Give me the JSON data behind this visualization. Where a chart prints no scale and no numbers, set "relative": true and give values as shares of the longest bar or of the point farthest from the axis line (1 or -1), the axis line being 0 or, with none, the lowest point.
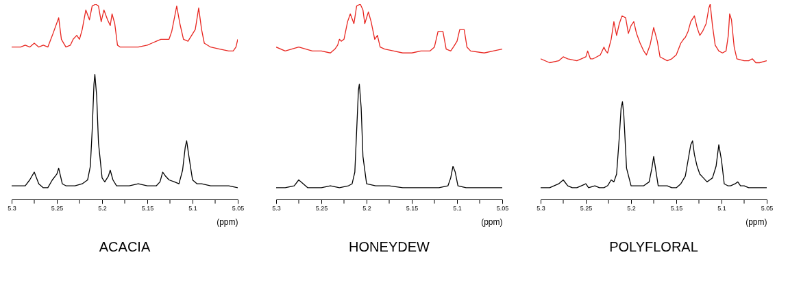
{
  "chart_data": [
    {
      "type": "line",
      "title": "ACACIA",
      "xlabel": "(ppm)",
      "relative": true,
      "tick_labels": "x",
      "xlim": [
        5.3,
        5.05
      ],
      "xticks": [
        5.3,
        {
          "value": 5.275,
          "label": null
        },
        5.25,
        {
          "value": 5.225,
          "label": null
        },
        5.2,
        {
          "value": 5.175,
          "label": null
        },
        5.15,
        {
          "value": 5.125,
          "label": null
        },
        5.1,
        {
          "value": 5.075,
          "label": null
        },
        5.05
      ],
      "series": [
        {
          "color": "#e8251f",
          "x": [
            5.3,
            5.29,
            5.285,
            5.28,
            5.275,
            5.27,
            5.265,
            5.26,
            5.255,
            5.248,
            5.245,
            5.24,
            5.235,
            5.232,
            5.228,
            5.225,
            5.222,
            5.218,
            5.214,
            5.211,
            5.207,
            5.204,
            5.201,
            5.198,
            5.194,
            5.191,
            5.189,
            5.186,
            5.183,
            5.18,
            5.17,
            5.16,
            5.15,
            5.145,
            5.14,
            5.135,
            5.13,
            5.126,
            5.123,
            5.1175,
            5.114,
            5.11,
            5.105,
            5.097,
            5.0932,
            5.09,
            5.087,
            5.08,
            5.07,
            5.06,
            5.055,
            5.052,
            5.05
          ],
          "values": [
            0.78,
            0.78,
            0.79,
            0.78,
            0.8,
            0.78,
            0.79,
            0.78,
            0.84,
            0.93,
            0.82,
            0.78,
            0.79,
            0.82,
            0.84,
            0.82,
            0.87,
            0.97,
            0.92,
            0.99,
            1.0,
            0.99,
            0.91,
            0.97,
            0.92,
            0.89,
            0.95,
            0.9,
            0.79,
            0.78,
            0.78,
            0.78,
            0.79,
            0.8,
            0.81,
            0.82,
            0.82,
            0.82,
            0.86,
            0.99,
            0.9,
            0.82,
            0.81,
            0.87,
            0.98,
            0.87,
            0.8,
            0.78,
            0.77,
            0.76,
            0.76,
            0.78,
            0.82
          ]
        },
        {
          "color": "#000000",
          "x": [
            5.3,
            5.29,
            5.285,
            5.28,
            5.275,
            5.27,
            5.265,
            5.26,
            5.255,
            5.25,
            5.248,
            5.244,
            5.24,
            5.23,
            5.222,
            5.216,
            5.213,
            5.211,
            5.209,
            5.208,
            5.206,
            5.204,
            5.2,
            5.197,
            5.193,
            5.191,
            5.188,
            5.184,
            5.17,
            5.16,
            5.15,
            5.14,
            5.136,
            5.133,
            5.13,
            5.126,
            5.12,
            5.115,
            5.111,
            5.108,
            5.1065,
            5.104,
            5.1,
            5.095,
            5.09,
            5.08,
            5.07,
            5.06,
            5.05
          ],
          "values": [
            0.07,
            0.07,
            0.07,
            0.1,
            0.14,
            0.08,
            0.06,
            0.06,
            0.1,
            0.13,
            0.16,
            0.08,
            0.07,
            0.07,
            0.08,
            0.1,
            0.17,
            0.35,
            0.59,
            0.64,
            0.53,
            0.29,
            0.11,
            0.09,
            0.12,
            0.15,
            0.1,
            0.07,
            0.07,
            0.08,
            0.07,
            0.07,
            0.09,
            0.14,
            0.12,
            0.1,
            0.09,
            0.08,
            0.15,
            0.27,
            0.3,
            0.22,
            0.1,
            0.08,
            0.08,
            0.07,
            0.07,
            0.07,
            0.06
          ]
        }
      ]
    },
    {
      "type": "line",
      "title": "HONEYDEW",
      "xlabel": "(ppm)",
      "relative": true,
      "tick_labels": "x",
      "xlim": [
        5.3,
        5.05
      ],
      "xticks": [
        5.3,
        {
          "value": 5.275,
          "label": null
        },
        5.25,
        {
          "value": 5.225,
          "label": null
        },
        5.2,
        {
          "value": 5.175,
          "label": null
        },
        5.15,
        {
          "value": 5.125,
          "label": null
        },
        5.1,
        {
          "value": 5.075,
          "label": null
        },
        5.05
      ],
      "series": [
        {
          "color": "#e8251f",
          "x": [
            5.3,
            5.29,
            5.275,
            5.26,
            5.25,
            5.24,
            5.235,
            5.232,
            5.23,
            5.228,
            5.225,
            5.221,
            5.218,
            5.214,
            5.211,
            5.207,
            5.204,
            5.202,
            5.198,
            5.195,
            5.191,
            5.188,
            5.185,
            5.18,
            5.17,
            5.16,
            5.15,
            5.14,
            5.13,
            5.125,
            5.121,
            5.1156,
            5.112,
            5.107,
            5.104,
            5.1,
            5.097,
            5.0921,
            5.089,
            5.085,
            5.07,
            5.06,
            5.05
          ],
          "values": [
            0.78,
            0.76,
            0.78,
            0.76,
            0.76,
            0.75,
            0.77,
            0.79,
            0.82,
            0.81,
            0.82,
            0.91,
            0.95,
            0.9,
            0.99,
            1.0,
            0.97,
            0.9,
            0.96,
            0.91,
            0.82,
            0.84,
            0.78,
            0.77,
            0.76,
            0.75,
            0.75,
            0.76,
            0.76,
            0.78,
            0.86,
            0.86,
            0.77,
            0.76,
            0.78,
            0.81,
            0.87,
            0.87,
            0.78,
            0.76,
            0.75,
            0.76,
            0.77
          ]
        },
        {
          "color": "#000000",
          "x": [
            5.3,
            5.29,
            5.28,
            5.275,
            5.27,
            5.265,
            5.25,
            5.24,
            5.23,
            5.22,
            5.216,
            5.213,
            5.211,
            5.209,
            5.208,
            5.206,
            5.204,
            5.2,
            5.19,
            5.18,
            5.175,
            5.16,
            5.14,
            5.12,
            5.11,
            5.107,
            5.1045,
            5.102,
            5.099,
            5.09,
            5.07,
            5.05
          ],
          "values": [
            0.06,
            0.06,
            0.07,
            0.1,
            0.08,
            0.06,
            0.06,
            0.07,
            0.06,
            0.07,
            0.08,
            0.14,
            0.35,
            0.56,
            0.59,
            0.47,
            0.22,
            0.08,
            0.07,
            0.07,
            0.07,
            0.06,
            0.06,
            0.06,
            0.07,
            0.11,
            0.17,
            0.14,
            0.07,
            0.06,
            0.06,
            0.06
          ]
        }
      ]
    },
    {
      "type": "line",
      "title": "POLYFLORAL",
      "xlabel": "(ppm)",
      "relative": true,
      "tick_labels": "x",
      "xlim": [
        5.3,
        5.05
      ],
      "xticks": [
        5.3,
        {
          "value": 5.275,
          "label": null
        },
        5.25,
        {
          "value": 5.225,
          "label": null
        },
        5.2,
        {
          "value": 5.175,
          "label": null
        },
        5.15,
        {
          "value": 5.125,
          "label": null
        },
        5.1,
        {
          "value": 5.075,
          "label": null
        },
        5.05
      ],
      "series": [
        {
          "color": "#e8251f",
          "x": [
            5.3,
            5.29,
            5.28,
            5.275,
            5.27,
            5.26,
            5.255,
            5.25,
            5.248,
            5.245,
            5.242,
            5.238,
            5.234,
            5.232,
            5.23,
            5.228,
            5.226,
            5.222,
            5.219,
            5.216,
            5.213,
            5.21,
            5.206,
            5.203,
            5.2,
            5.197,
            5.194,
            5.19,
            5.188,
            5.186,
            5.183,
            5.179,
            5.175,
            5.171,
            5.168,
            5.16,
            5.155,
            5.15,
            5.145,
            5.142,
            5.14,
            5.137,
            5.134,
            5.13,
            5.127,
            5.124,
            5.121,
            5.117,
            5.114,
            5.1125,
            5.11,
            5.107,
            5.103,
            5.099,
            5.095,
            5.0925,
            5.091,
            5.089,
            5.086,
            5.083,
            5.075,
            5.07,
            5.066,
            5.062,
            5.058,
            5.05
          ],
          "values": [
            0.72,
            0.7,
            0.71,
            0.73,
            0.72,
            0.71,
            0.72,
            0.73,
            0.76,
            0.72,
            0.72,
            0.73,
            0.74,
            0.76,
            0.78,
            0.76,
            0.75,
            0.82,
            0.91,
            0.84,
            0.9,
            0.94,
            0.93,
            0.85,
            0.89,
            0.91,
            0.85,
            0.8,
            0.78,
            0.76,
            0.74,
            0.79,
            0.88,
            0.81,
            0.73,
            0.71,
            0.72,
            0.74,
            0.8,
            0.82,
            0.83,
            0.86,
            0.91,
            0.94,
            0.88,
            0.84,
            0.86,
            0.9,
            0.98,
            1.0,
            0.89,
            0.79,
            0.76,
            0.75,
            0.76,
            0.84,
            0.95,
            0.92,
            0.78,
            0.72,
            0.71,
            0.71,
            0.72,
            0.7,
            0.7,
            0.71
          ]
        },
        {
          "color": "#000000",
          "x": [
            5.3,
            5.29,
            5.28,
            5.275,
            5.27,
            5.265,
            5.26,
            5.255,
            5.25,
            5.247,
            5.24,
            5.235,
            5.23,
            5.226,
            5.222,
            5.219,
            5.216,
            5.213,
            5.211,
            5.2095,
            5.208,
            5.205,
            5.2,
            5.195,
            5.19,
            5.186,
            5.18,
            5.177,
            5.175,
            5.173,
            5.17,
            5.16,
            5.155,
            5.15,
            5.145,
            5.14,
            5.137,
            5.134,
            5.132,
            5.13,
            5.127,
            5.124,
            5.12,
            5.116,
            5.113,
            5.11,
            5.106,
            5.103,
            5.1,
            5.097,
            5.093,
            5.09,
            5.085,
            5.082,
            5.079,
            5.075,
            5.07,
            5.06,
            5.05
          ],
          "values": [
            0.06,
            0.06,
            0.08,
            0.1,
            0.07,
            0.06,
            0.06,
            0.07,
            0.08,
            0.06,
            0.07,
            0.06,
            0.06,
            0.07,
            0.1,
            0.09,
            0.13,
            0.32,
            0.47,
            0.5,
            0.43,
            0.16,
            0.07,
            0.07,
            0.07,
            0.07,
            0.09,
            0.16,
            0.22,
            0.16,
            0.07,
            0.07,
            0.06,
            0.06,
            0.08,
            0.12,
            0.2,
            0.28,
            0.3,
            0.23,
            0.17,
            0.13,
            0.11,
            0.09,
            0.1,
            0.11,
            0.17,
            0.28,
            0.2,
            0.08,
            0.07,
            0.07,
            0.08,
            0.09,
            0.07,
            0.07,
            0.06,
            0.06,
            0.06
          ]
        }
      ]
    }
  ]
}
